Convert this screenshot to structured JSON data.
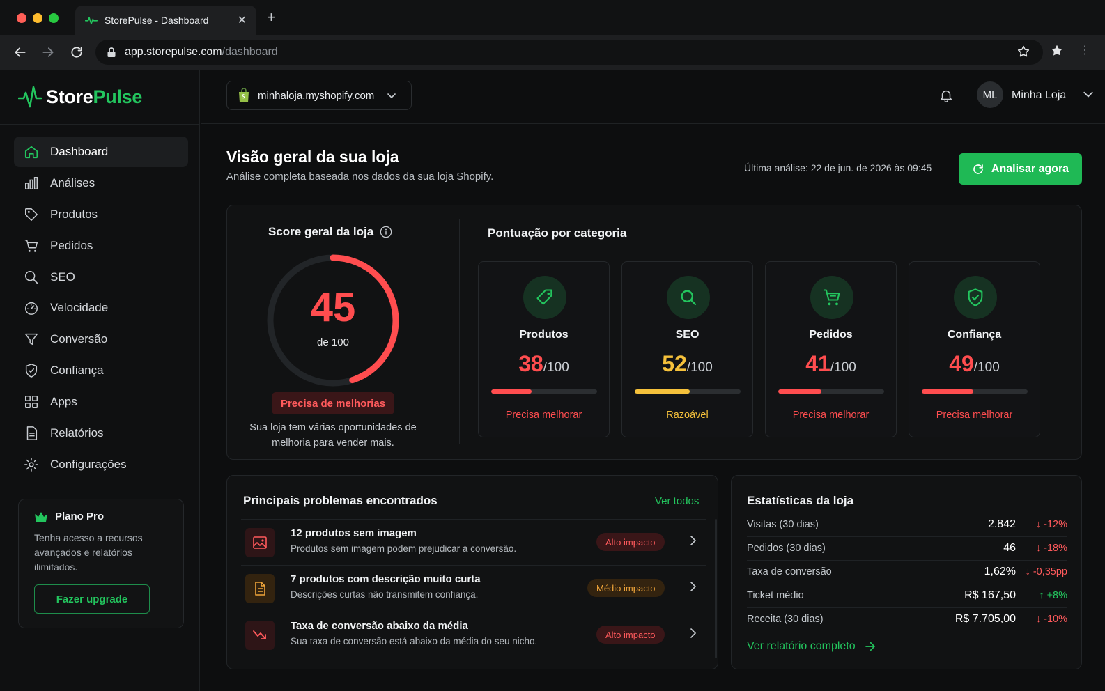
{
  "browser": {
    "tab_title": "StorePulse - Dashboard",
    "url_host": "app.storepulse.com",
    "url_path": "/dashboard"
  },
  "brand": {
    "name_a": "Store",
    "name_b": "Pulse",
    "accent": "#23c55e"
  },
  "sidebar": {
    "items": [
      {
        "label": "Dashboard",
        "icon": "home-icon",
        "active": true
      },
      {
        "label": "Análises",
        "icon": "bar-chart-icon"
      },
      {
        "label": "Produtos",
        "icon": "tag-icon"
      },
      {
        "label": "Pedidos",
        "icon": "cart-icon"
      },
      {
        "label": "SEO",
        "icon": "search-icon"
      },
      {
        "label": "Velocidade",
        "icon": "speedometer-icon"
      },
      {
        "label": "Conversão",
        "icon": "funnel-icon"
      },
      {
        "label": "Confiança",
        "icon": "shield-check-icon"
      },
      {
        "label": "Apps",
        "icon": "grid-icon"
      },
      {
        "label": "Relatórios",
        "icon": "document-icon"
      },
      {
        "label": "Configurações",
        "icon": "gear-icon"
      }
    ],
    "plan": {
      "title": "Plano Pro",
      "description": "Tenha acesso a recursos avançados e relatórios ilimitados.",
      "button": "Fazer upgrade"
    }
  },
  "topbar": {
    "store": "minhaloja.myshopify.com",
    "avatar_initials": "ML",
    "account_name": "Minha Loja"
  },
  "header": {
    "title": "Visão geral da sua loja",
    "subtitle": "Análise completa baseada nos dados da sua loja Shopify.",
    "last_analysis": "Última análise: 22 de jun. de 2026 às 09:45",
    "analyze_button": "Analisar agora"
  },
  "score": {
    "title": "Score geral da loja",
    "value": "45",
    "value_fraction": 0.45,
    "of_label": "de 100",
    "status": "Precisa de melhorias",
    "description": "Sua loja tem várias oportunidades de melhoria para vender mais.",
    "color": "#ff4d4f"
  },
  "categories": {
    "title": "Pontuação por categoria",
    "items": [
      {
        "name": "Produtos",
        "score": "38",
        "den": "/100",
        "fraction": 0.38,
        "status": "Precisa melhorar",
        "color": "#ff4d4f",
        "icon": "tag-icon"
      },
      {
        "name": "SEO",
        "score": "52",
        "den": "/100",
        "fraction": 0.52,
        "status": "Razoável",
        "color": "#f5c13b",
        "icon": "search-icon"
      },
      {
        "name": "Pedidos",
        "score": "41",
        "den": "/100",
        "fraction": 0.41,
        "status": "Precisa melhorar",
        "color": "#ff4d4f",
        "icon": "cart-icon"
      },
      {
        "name": "Confiança",
        "score": "49",
        "den": "/100",
        "fraction": 0.49,
        "status": "Precisa melhorar",
        "color": "#ff4d4f",
        "icon": "shield-check-icon"
      }
    ]
  },
  "problems": {
    "title": "Principais problemas encontrados",
    "link": "Ver todos",
    "items": [
      {
        "title": "12 produtos sem imagem",
        "description": "Produtos sem imagem podem prejudicar a conversão.",
        "impact": "Alto impacto",
        "icon": "image-icon"
      },
      {
        "title": "7 produtos com descrição muito curta",
        "description": "Descrições curtas não transmitem confiança.",
        "impact": "Médio impacto",
        "icon": "file-text-icon"
      },
      {
        "title": "Taxa de conversão abaixo da média",
        "description": "Sua taxa de conversão está abaixo da média do seu nicho.",
        "impact": "Alto impacto",
        "icon": "trending-down-icon"
      }
    ]
  },
  "stats": {
    "title": "Estatísticas da loja",
    "rows": [
      {
        "label": "Visitas (30 dias)",
        "value": "2.842",
        "delta": "-12%",
        "direction": "down"
      },
      {
        "label": "Pedidos (30 dias)",
        "value": "46",
        "delta": "-18%",
        "direction": "down"
      },
      {
        "label": "Taxa de conversão",
        "value": "1,62%",
        "delta": "-0,35pp",
        "direction": "down"
      },
      {
        "label": "Ticket médio",
        "value": "R$ 167,50",
        "delta": "+8%",
        "direction": "up"
      },
      {
        "label": "Receita (30 dias)",
        "value": "R$ 7.705,00",
        "delta": "-10%",
        "direction": "down"
      }
    ],
    "link": "Ver relatório completo"
  }
}
